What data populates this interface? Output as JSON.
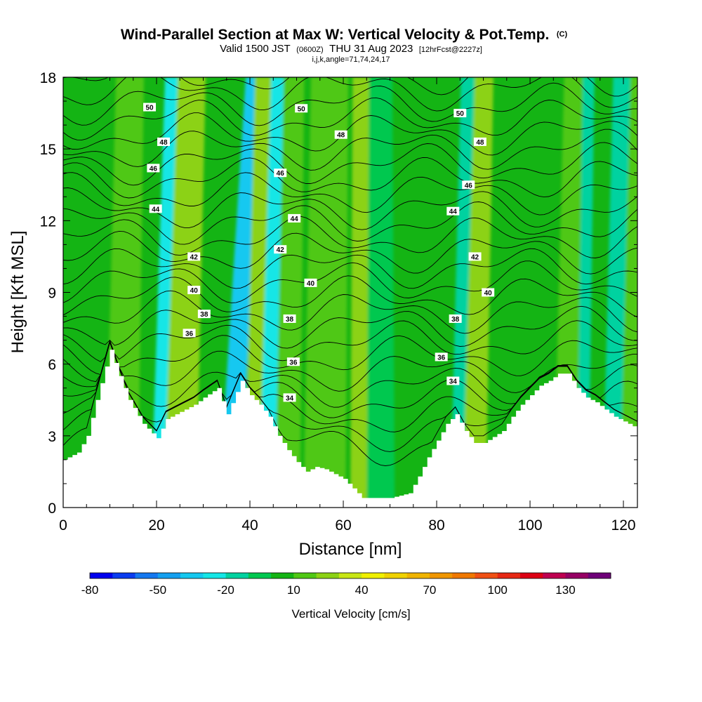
{
  "title": {
    "main": "Wind-Parallel Section at Max W: Vertical Velocity & Pot.Temp.",
    "copyright": "(C)",
    "line2_a": "Valid 1500 JST",
    "line2_b": "(0600Z)",
    "line2_c": "THU 31 Aug 2023",
    "line2_d": "[12hrFcst@2227z]",
    "line3": "i,j,k,angle=71,74,24,17"
  },
  "chart_data": {
    "type": "heatmap",
    "xlabel": "Distance [nm]",
    "ylabel": "Height [Kft MSL]",
    "xlim": [
      0,
      123
    ],
    "ylim": [
      0,
      18
    ],
    "x_ticks": [
      0,
      20,
      40,
      60,
      80,
      100,
      120
    ],
    "y_ticks": [
      0,
      3,
      6,
      9,
      12,
      15,
      18
    ],
    "colorbar": {
      "title": "Vertical Velocity [cm/s]",
      "tick_labels": [
        "-80",
        "-50",
        "-20",
        "10",
        "40",
        "70",
        "100",
        "130"
      ],
      "tick_values": [
        -80,
        -50,
        -20,
        10,
        40,
        70,
        100,
        130
      ],
      "levels": [
        -80,
        -70,
        -60,
        -50,
        -40,
        -30,
        -20,
        -10,
        0,
        10,
        20,
        30,
        40,
        50,
        60,
        70,
        80,
        90,
        100,
        110,
        120,
        130,
        140
      ],
      "colors": [
        "#0000ee",
        "#0a3cf0",
        "#1478f0",
        "#14a0f0",
        "#14c8f0",
        "#14e6e6",
        "#00d2a0",
        "#00c850",
        "#14b414",
        "#50c814",
        "#8cd214",
        "#c8e614",
        "#f0f000",
        "#f0d200",
        "#f0b400",
        "#f09600",
        "#f07800",
        "#f05014",
        "#e62814",
        "#dc0014",
        "#be0050",
        "#960064",
        "#6e0078"
      ]
    },
    "terrain": {
      "x": [
        0,
        3,
        5,
        7,
        10,
        12,
        14,
        17,
        20,
        22,
        25,
        28,
        30,
        33,
        35,
        38,
        40,
        42,
        44,
        46,
        48,
        50,
        52,
        54,
        56,
        58,
        60,
        62,
        64,
        66,
        70,
        74,
        76,
        78,
        80,
        82,
        84,
        86,
        88,
        90,
        94,
        96,
        98,
        100,
        102,
        104,
        106,
        108,
        110,
        112,
        114,
        116,
        118,
        120,
        123
      ],
      "height_kft": [
        2.0,
        2.3,
        3.0,
        4.5,
        6.6,
        5.5,
        4.5,
        3.5,
        2.9,
        3.7,
        4.0,
        4.3,
        4.6,
        5.0,
        3.9,
        5.3,
        4.7,
        4.3,
        3.8,
        3.0,
        2.4,
        1.9,
        1.5,
        1.7,
        1.6,
        1.4,
        1.2,
        0.8,
        0.4,
        0.4,
        0.4,
        0.6,
        1.3,
        2.1,
        2.8,
        3.5,
        3.9,
        3.2,
        2.7,
        2.7,
        3.2,
        3.8,
        4.3,
        4.7,
        5.1,
        5.3,
        5.6,
        5.6,
        5.0,
        4.6,
        4.4,
        4.1,
        3.8,
        3.6,
        3.3
      ]
    },
    "w_columns": [
      {
        "x": 12.5,
        "w": 40,
        "width": 3.0,
        "tilt": 0.1
      },
      {
        "x": 21.5,
        "w": -45,
        "width": 2.2,
        "tilt": 0.14
      },
      {
        "x": 25.0,
        "w": 45,
        "width": 3.0,
        "tilt": 0.14
      },
      {
        "x": 35.5,
        "w": -70,
        "width": 1.8,
        "tilt": 0.3
      },
      {
        "x": 41.5,
        "w": 60,
        "width": 2.2,
        "tilt": 0.1
      },
      {
        "x": 44.0,
        "w": -60,
        "width": 1.6,
        "tilt": 0.12
      },
      {
        "x": 48.0,
        "w": 30,
        "width": 2.2,
        "tilt": 0.08
      },
      {
        "x": 56.0,
        "w": 25,
        "width": 4.0,
        "tilt": 0.06
      },
      {
        "x": 64.5,
        "w": 45,
        "width": 2.5,
        "tilt": 0.0
      },
      {
        "x": 68.0,
        "w": -10,
        "width": 2.5,
        "tilt": 0.0
      },
      {
        "x": 85.0,
        "w": -40,
        "width": 1.6,
        "tilt": 0.1
      },
      {
        "x": 88.0,
        "w": 45,
        "width": 2.0,
        "tilt": 0.12
      },
      {
        "x": 110.0,
        "w": -40,
        "width": 2.0,
        "tilt": 0.1
      },
      {
        "x": 107.5,
        "w": 40,
        "width": 2.0,
        "tilt": 0.1
      },
      {
        "x": 118.0,
        "w": -30,
        "width": 2.0,
        "tilt": 0.1
      },
      {
        "x": 121.5,
        "w": 40,
        "width": 1.8,
        "tilt": 0.1
      }
    ],
    "theta_contours": {
      "levels": [
        34,
        36,
        38,
        40,
        42,
        44,
        46,
        48,
        50
      ],
      "labels": [
        {
          "text": "50",
          "x": 18.5,
          "y": 16.75
        },
        {
          "text": "48",
          "x": 21.5,
          "y": 15.3
        },
        {
          "text": "46",
          "x": 19.3,
          "y": 14.2
        },
        {
          "text": "44",
          "x": 19.8,
          "y": 12.5
        },
        {
          "text": "42",
          "x": 28.0,
          "y": 10.5
        },
        {
          "text": "40",
          "x": 28.0,
          "y": 9.1
        },
        {
          "text": "38",
          "x": 30.2,
          "y": 8.1
        },
        {
          "text": "36",
          "x": 27.0,
          "y": 7.3
        },
        {
          "text": "50",
          "x": 51.0,
          "y": 16.7
        },
        {
          "text": "48",
          "x": 59.5,
          "y": 15.6
        },
        {
          "text": "46",
          "x": 46.5,
          "y": 14.0
        },
        {
          "text": "44",
          "x": 49.5,
          "y": 12.1
        },
        {
          "text": "42",
          "x": 46.5,
          "y": 10.8
        },
        {
          "text": "40",
          "x": 53.0,
          "y": 9.4
        },
        {
          "text": "38",
          "x": 48.5,
          "y": 7.9
        },
        {
          "text": "36",
          "x": 49.3,
          "y": 6.1
        },
        {
          "text": "34",
          "x": 48.5,
          "y": 4.6
        },
        {
          "text": "50",
          "x": 85.0,
          "y": 16.5
        },
        {
          "text": "48",
          "x": 89.3,
          "y": 15.3
        },
        {
          "text": "46",
          "x": 86.8,
          "y": 13.5
        },
        {
          "text": "44",
          "x": 83.5,
          "y": 12.4
        },
        {
          "text": "42",
          "x": 88.2,
          "y": 10.5
        },
        {
          "text": "40",
          "x": 91.0,
          "y": 9.0
        },
        {
          "text": "38",
          "x": 84.0,
          "y": 7.9
        },
        {
          "text": "36",
          "x": 81.0,
          "y": 6.3
        },
        {
          "text": "34",
          "x": 83.5,
          "y": 5.3
        }
      ]
    }
  }
}
